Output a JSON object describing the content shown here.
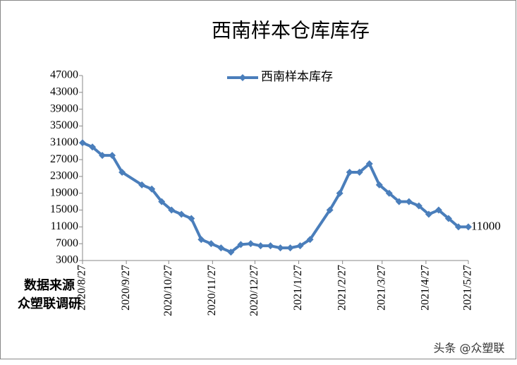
{
  "chart_data": {
    "type": "line",
    "title": "西南样本仓库库存",
    "annotation": [
      "数据来源",
      "众塑联调研"
    ],
    "watermark": "头条 @众塑联",
    "legend": "top",
    "x": [
      "2020/8/27",
      "2020/9/3",
      "2020/9/10",
      "2020/9/17",
      "2020/9/24",
      "2020/10/8",
      "2020/10/15",
      "2020/10/22",
      "2020/10/29",
      "2020/11/5",
      "2020/11/12",
      "2020/11/19",
      "2020/11/26",
      "2020/12/3",
      "2020/12/10",
      "2020/12/17",
      "2020/12/24",
      "2020/12/31",
      "2021/1/7",
      "2021/1/14",
      "2021/1/21",
      "2021/1/28",
      "2021/2/4",
      "2021/2/18",
      "2021/2/25",
      "2021/3/4",
      "2021/3/11",
      "2021/3/18",
      "2021/3/25",
      "2021/4/1",
      "2021/4/8",
      "2021/4/15",
      "2021/4/22",
      "2021/4/29",
      "2021/5/6",
      "2021/5/13",
      "2021/5/20",
      "2021/5/27"
    ],
    "series": [
      {
        "name": "西南样本库存",
        "color": "#4a7ebb",
        "values": [
          31000,
          30000,
          28000,
          28000,
          24000,
          21000,
          20000,
          17000,
          15000,
          14000,
          13000,
          8000,
          7000,
          6000,
          5000,
          6800,
          7000,
          6500,
          6500,
          6000,
          6000,
          6500,
          8000,
          15000,
          19000,
          24000,
          24000,
          26000,
          21000,
          19000,
          17000,
          17000,
          16000,
          14000,
          15000,
          13000,
          11000,
          11000
        ]
      }
    ],
    "xlim": [
      "2020/8/27",
      "2021/5/27"
    ],
    "xticks": [
      "2020/8/27",
      "2020/9/27",
      "2020/10/27",
      "2020/11/27",
      "2020/12/27",
      "2021/1/27",
      "2021/2/27",
      "2021/3/27",
      "2021/4/27",
      "2021/5/27"
    ],
    "ylim": [
      3000,
      47000
    ],
    "yticks": [
      3000,
      7000,
      11000,
      15000,
      19000,
      23000,
      27000,
      31000,
      35000,
      39000,
      43000,
      47000
    ],
    "grid": false
  }
}
